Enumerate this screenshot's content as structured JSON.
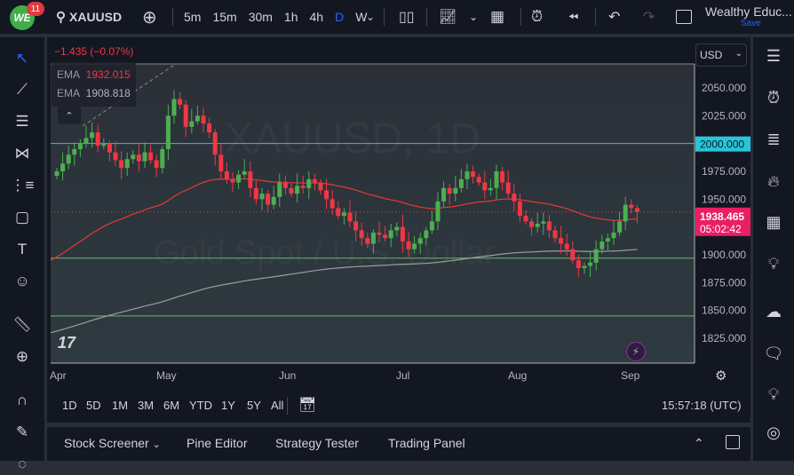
{
  "header": {
    "notifications": "11",
    "symbol": "XAUUSD",
    "intervals": [
      "5m",
      "15m",
      "30m",
      "1h",
      "4h",
      "D",
      "W"
    ],
    "active_interval": "D",
    "layout_name": "Wealthy Educ...",
    "save_label": "Save"
  },
  "legend": {
    "change": "−1.435 (−0.07%)",
    "ema1_label": "EMA",
    "ema1_value": "1932.015",
    "ema2_label": "EMA",
    "ema2_value": "1908.818"
  },
  "watermark": {
    "symbol": "XAUUSD, 1D",
    "name": "Gold Spot / U.S. Dollar"
  },
  "currency": "USD",
  "price_axis": [
    "2050.000",
    "2025.000",
    "2000.000",
    "1975.000",
    "1950.000",
    "1900.000",
    "1875.000",
    "1850.000",
    "1825.000"
  ],
  "price_ticks": [
    2050,
    2025,
    2000,
    1975,
    1950,
    1900,
    1875,
    1850,
    1825
  ],
  "highlight_label": "2000.000",
  "last_price": "1938.465",
  "countdown": "05:02:42",
  "date_axis": [
    "Apr",
    "May",
    "Jun",
    "Jul",
    "Aug",
    "Sep"
  ],
  "ranges": [
    "1D",
    "5D",
    "1M",
    "3M",
    "6M",
    "YTD",
    "1Y",
    "5Y",
    "All"
  ],
  "clock": "15:57:18 (UTC)",
  "bottom_tabs": [
    "Stock Screener",
    "Pine Editor",
    "Strategy Tester",
    "Trading Panel"
  ],
  "colors": {
    "up": "#4caf50",
    "down": "#f23645",
    "ema_fast": "#e53935",
    "ema_slow": "#9e9e9e",
    "level_cyan": "#26c6da",
    "level_green": "#66bb6a",
    "accent": "#2962ff"
  },
  "chart_data": {
    "type": "candlestick",
    "levels": [
      2000,
      1897,
      1845
    ],
    "ylim": [
      1800,
      2075
    ],
    "closes": [
      1975,
      1982,
      1990,
      1995,
      2000,
      2005,
      2010,
      1998,
      2000,
      1992,
      1985,
      1978,
      1986,
      1990,
      1984,
      1992,
      1985,
      1978,
      1995,
      2025,
      2040,
      2035,
      2015,
      2020,
      2025,
      2018,
      2010,
      1990,
      1975,
      1968,
      1965,
      1972,
      1975,
      1960,
      1950,
      1955,
      1945,
      1952,
      1965,
      1960,
      1955,
      1962,
      1960,
      1968,
      1965,
      1958,
      1950,
      1942,
      1935,
      1938,
      1930,
      1922,
      1915,
      1910,
      1920,
      1918,
      1915,
      1922,
      1925,
      1912,
      1905,
      1910,
      1915,
      1922,
      1930,
      1948,
      1960,
      1955,
      1960,
      1968,
      1975,
      1970,
      1965,
      1958,
      1960,
      1975,
      1965,
      1955,
      1948,
      1935,
      1930,
      1925,
      1928,
      1930,
      1922,
      1915,
      1910,
      1905,
      1895,
      1888,
      1890,
      1893,
      1905,
      1912,
      1915,
      1920,
      1930,
      1945,
      1942,
      1938.465
    ]
  }
}
